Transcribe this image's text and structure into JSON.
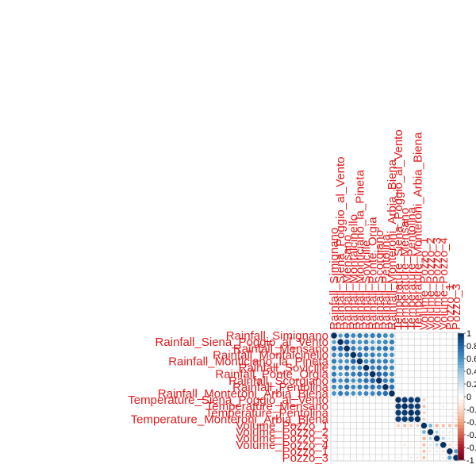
{
  "chart_data": {
    "type": "heatmap",
    "variables": [
      "Rainfall_Simignano",
      "Rainfall_Siena_Poggio_al_Vento",
      "Rainfall_Mensano",
      "Rainfall_Montalcinello",
      "Rainfall_Monticiano_la_Pineta",
      "Rainfall_Sovicille",
      "Rainfall_Ponte_Orgia",
      "Rainfall_Scorgiano",
      "Rainfall_Pentolina",
      "Rainfall_Monteroni_Arbia_Biena",
      "Temperature_Siena_Poggio_al_Vento",
      "Temperature_Mensano",
      "Temperature_Pentolina",
      "Temperature_Monteroni_Arbia_Biena",
      "Volume_Pozzo_1",
      "Volume_Pozzo_2",
      "Volume_Pozzo_3",
      "Volume_Pozzo_4",
      "Pozzo_1",
      "Pozzo_3"
    ],
    "colorbar_ticks": [
      "1",
      "0.8",
      "0.6",
      "0.4",
      "0.2",
      "0",
      "-0.2",
      "-0.4",
      "-0.6",
      "-0.8",
      "-1"
    ],
    "colors": {
      "positive": "#053061",
      "mid": "#ffffff",
      "negative": "#67001f",
      "label": "#e31a1c",
      "grid": "#cccccc"
    },
    "matrix": [
      [
        1.0,
        0.55,
        0.75,
        0.65,
        0.7,
        0.65,
        0.7,
        0.7,
        0.65,
        0.6,
        0,
        0,
        0,
        0,
        0,
        0,
        0,
        0,
        0,
        0
      ],
      [
        0.55,
        1.0,
        0.8,
        0.65,
        0.6,
        0.65,
        0.55,
        0.6,
        0.65,
        0.7,
        0,
        0,
        0,
        0,
        0,
        0,
        0,
        0,
        0,
        0
      ],
      [
        0.75,
        0.8,
        1.0,
        0.7,
        0.6,
        0.75,
        0.65,
        0.7,
        0.75,
        0.65,
        0,
        0,
        0,
        0,
        0,
        0,
        0,
        0,
        0,
        0
      ],
      [
        0.65,
        0.65,
        0.7,
        1.0,
        0.8,
        0.65,
        0.7,
        0.6,
        0.65,
        0.6,
        0,
        0,
        0,
        0,
        0,
        0,
        0,
        0,
        0,
        0
      ],
      [
        0.7,
        0.6,
        0.6,
        0.8,
        1.0,
        0.65,
        0.75,
        0.65,
        0.7,
        0.6,
        0,
        0,
        0,
        0,
        0,
        0,
        0,
        0,
        0,
        0
      ],
      [
        0.65,
        0.65,
        0.75,
        0.65,
        0.65,
        1.0,
        0.7,
        0.75,
        0.7,
        0.65,
        0,
        0,
        0,
        0,
        0,
        0,
        0,
        0,
        0,
        0
      ],
      [
        0.7,
        0.55,
        0.65,
        0.7,
        0.75,
        0.7,
        1.0,
        0.8,
        0.75,
        0.65,
        0,
        0,
        0,
        0,
        0,
        0,
        0,
        0,
        0,
        0
      ],
      [
        0.7,
        0.6,
        0.7,
        0.6,
        0.65,
        0.75,
        0.8,
        1.0,
        0.7,
        0.7,
        0,
        0,
        0,
        0,
        0,
        0,
        0,
        0,
        0,
        0
      ],
      [
        0.65,
        0.65,
        0.75,
        0.65,
        0.7,
        0.7,
        0.75,
        0.7,
        1.0,
        0.75,
        0,
        0,
        0,
        0,
        0,
        0,
        0,
        0,
        0,
        0
      ],
      [
        0.6,
        0.7,
        0.65,
        0.6,
        0.6,
        0.65,
        0.65,
        0.7,
        0.75,
        1.0,
        0,
        0,
        0,
        0,
        0,
        0,
        0,
        0,
        0,
        0
      ],
      [
        0,
        0,
        0,
        0,
        0,
        0,
        0,
        0,
        0,
        0,
        1.0,
        0.95,
        0.95,
        0.95,
        -0.25,
        0,
        0,
        -0.1,
        0,
        -0.1
      ],
      [
        0,
        0,
        0,
        0,
        0,
        0,
        0,
        0,
        0,
        0,
        0.95,
        1.0,
        0.95,
        0.95,
        -0.3,
        0,
        0,
        -0.15,
        0,
        0
      ],
      [
        0,
        0,
        0,
        0,
        0,
        0,
        0,
        0,
        0,
        0,
        0.95,
        0.95,
        1.0,
        0.95,
        -0.25,
        0,
        0,
        -0.1,
        0,
        -0.15
      ],
      [
        0,
        0,
        0,
        0,
        0,
        0,
        0,
        0,
        0,
        0,
        0.95,
        0.95,
        0.95,
        1.0,
        -0.25,
        0,
        0,
        -0.1,
        0,
        -0.15
      ],
      [
        0,
        0,
        0,
        0,
        0,
        0,
        0,
        0,
        0,
        0,
        -0.25,
        -0.3,
        -0.25,
        -0.25,
        1.0,
        0.45,
        -0.35,
        -0.3,
        -0.3,
        -0.3
      ],
      [
        0,
        0,
        0,
        0,
        0,
        0,
        0,
        0,
        0,
        0,
        0,
        0,
        0,
        0,
        0.45,
        1.0,
        0.3,
        0.15,
        -0.15,
        0
      ],
      [
        0,
        0,
        0,
        0,
        0,
        0,
        0,
        0,
        0,
        0,
        0,
        0,
        0,
        0,
        -0.35,
        0.3,
        1.0,
        0.3,
        0.15,
        0
      ],
      [
        0,
        0,
        0,
        0,
        0,
        0,
        0,
        0,
        0,
        0,
        -0.1,
        -0.15,
        -0.1,
        -0.1,
        -0.3,
        0.15,
        0.3,
        1.0,
        -0.2,
        -0.15
      ],
      [
        0,
        0,
        0,
        0,
        0,
        0,
        0,
        0,
        0,
        0,
        0,
        0,
        0,
        0,
        -0.3,
        -0.15,
        0.15,
        -0.2,
        1.0,
        0.55
      ],
      [
        0,
        0,
        0,
        0,
        0,
        0,
        0,
        0,
        0,
        0,
        -0.1,
        0,
        -0.15,
        -0.15,
        -0.3,
        0,
        0,
        -0.15,
        0.55,
        1.0
      ]
    ]
  }
}
